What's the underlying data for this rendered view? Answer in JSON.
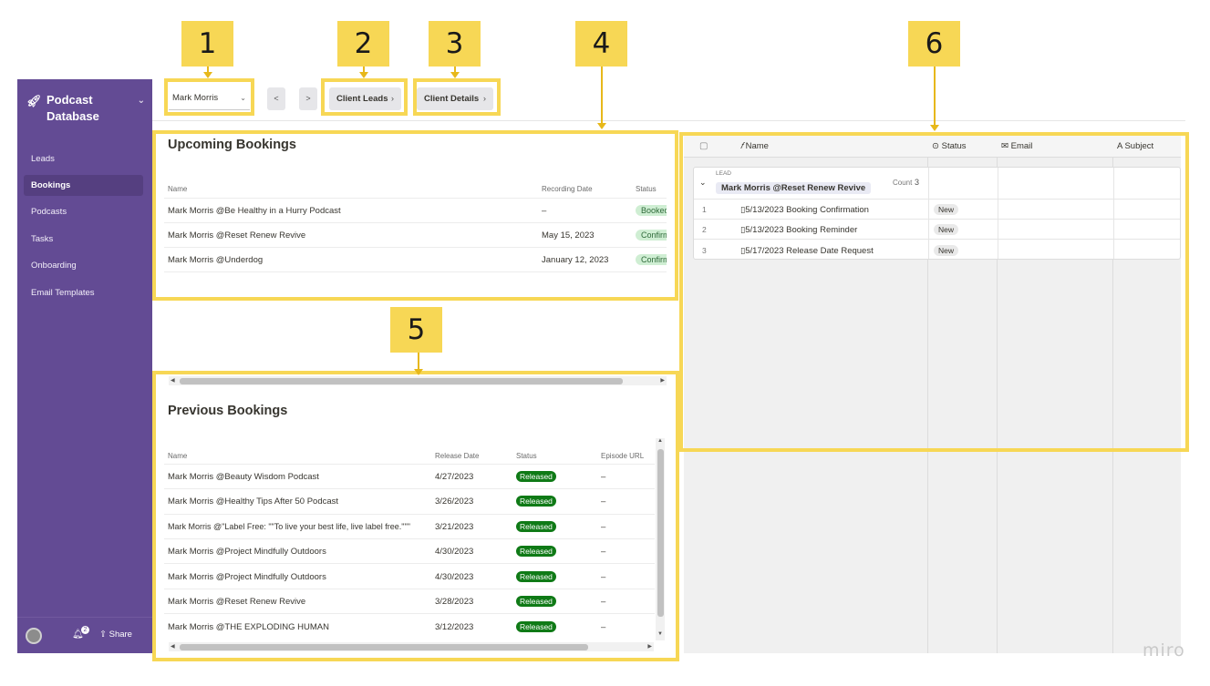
{
  "callouts": [
    "1",
    "2",
    "3",
    "4",
    "5",
    "6"
  ],
  "sidebar": {
    "title": "Podcast Database",
    "items": [
      "Leads",
      "Bookings",
      "Podcasts",
      "Tasks",
      "Onboarding",
      "Email Templates"
    ],
    "active_item": "Bookings",
    "notification_count": "2",
    "share_label": "Share"
  },
  "topbar": {
    "selected_client": "Mark Morris",
    "prev_label": "<",
    "next_label": ">",
    "client_leads_label": "Client Leads",
    "client_details_label": "Client Details"
  },
  "upcoming": {
    "title": "Upcoming Bookings",
    "columns": [
      "Name",
      "Recording Date",
      "Status"
    ],
    "rows": [
      {
        "name": "Mark Morris @Be Healthy in a Hurry Podcast",
        "date": "–",
        "status": "Booked"
      },
      {
        "name": "Mark Morris @Reset Renew Revive",
        "date": "May 15, 2023",
        "status": "Confirmed"
      },
      {
        "name": "Mark Morris @Underdog",
        "date": "January 12, 2023",
        "status": "Confirmed"
      }
    ]
  },
  "previous": {
    "title": "Previous Bookings",
    "columns": [
      "Name",
      "Release Date",
      "Status",
      "Episode URL"
    ],
    "rows": [
      {
        "name": "Mark Morris @Beauty Wisdom Podcast",
        "date": "4/27/2023",
        "status": "Released",
        "url": "–"
      },
      {
        "name": "Mark Morris @Healthy Tips After 50 Podcast",
        "date": "3/26/2023",
        "status": "Released",
        "url": "–"
      },
      {
        "name": "Mark Morris @\"Label Free: \"\"To live your best life, live label free.\"\"\"",
        "date": "3/21/2023",
        "status": "Released",
        "url": "–"
      },
      {
        "name": "Mark Morris @Project Mindfully Outdoors",
        "date": "4/30/2023",
        "status": "Released",
        "url": "–"
      },
      {
        "name": "Mark Morris @Project Mindfully Outdoors",
        "date": "4/30/2023",
        "status": "Released",
        "url": "–"
      },
      {
        "name": "Mark Morris @Reset Renew Revive",
        "date": "3/28/2023",
        "status": "Released",
        "url": "–"
      },
      {
        "name": "Mark Morris @THE EXPLODING HUMAN",
        "date": "3/12/2023",
        "status": "Released",
        "url": "–"
      }
    ]
  },
  "grid": {
    "columns": {
      "name": "Name",
      "status": "Status",
      "email": "Email",
      "subject": "Subject"
    },
    "group_label": "LEAD",
    "group_value": "Mark Morris @Reset Renew Revive",
    "count_label": "Count",
    "count_value": "3",
    "rows": [
      {
        "num": "1",
        "name": "5/13/2023 Booking Confirmation",
        "status": "New"
      },
      {
        "num": "2",
        "name": "5/13/2023 Booking Reminder",
        "status": "New"
      },
      {
        "num": "3",
        "name": "5/17/2023 Release Date Request",
        "status": "New"
      }
    ]
  },
  "watermark": "miro",
  "colors": {
    "sidebar": "#634b94",
    "highlight": "#f7d755",
    "released": "#0f7a16"
  }
}
